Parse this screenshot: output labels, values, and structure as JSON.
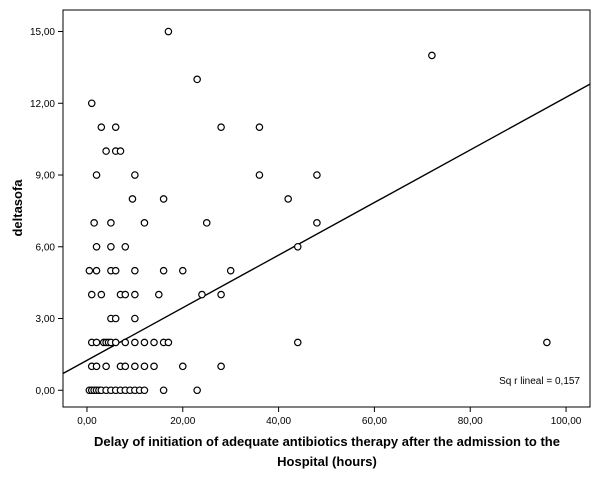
{
  "chart_data": {
    "type": "scatter",
    "xlabel_line1": "Delay of initiation of adequate antibiotics therapy after the admission to the",
    "xlabel_line2": "Hospital (hours)",
    "ylabel": "deltasofa",
    "xlim": [
      -5,
      105
    ],
    "ylim": [
      -0.7,
      15.9
    ],
    "xticks": [
      0,
      20,
      40,
      60,
      80,
      100
    ],
    "xtick_labels": [
      "0,00",
      "20,00",
      "40,00",
      "60,00",
      "80,00",
      "100,00"
    ],
    "yticks": [
      0,
      3,
      6,
      9,
      12,
      15
    ],
    "ytick_labels": [
      "0,00",
      "3,00",
      "6,00",
      "9,00",
      "12,00",
      "15,00"
    ],
    "grid": false,
    "annotation": "Sq r lineal = 0,157",
    "fit_line": {
      "x": [
        -5,
        105
      ],
      "y": [
        0.7,
        12.8
      ]
    },
    "points": [
      {
        "x": 17,
        "y": 15
      },
      {
        "x": 72,
        "y": 14
      },
      {
        "x": 23,
        "y": 13
      },
      {
        "x": 1,
        "y": 12
      },
      {
        "x": 3,
        "y": 11
      },
      {
        "x": 6,
        "y": 11
      },
      {
        "x": 28,
        "y": 11
      },
      {
        "x": 36,
        "y": 11
      },
      {
        "x": 4,
        "y": 10
      },
      {
        "x": 6,
        "y": 10
      },
      {
        "x": 7,
        "y": 10
      },
      {
        "x": 2,
        "y": 9
      },
      {
        "x": 10,
        "y": 9
      },
      {
        "x": 36,
        "y": 9
      },
      {
        "x": 48,
        "y": 9
      },
      {
        "x": 9.5,
        "y": 8
      },
      {
        "x": 16,
        "y": 8
      },
      {
        "x": 42,
        "y": 8
      },
      {
        "x": 1.5,
        "y": 7
      },
      {
        "x": 5,
        "y": 7
      },
      {
        "x": 12,
        "y": 7
      },
      {
        "x": 25,
        "y": 7
      },
      {
        "x": 48,
        "y": 7
      },
      {
        "x": 2,
        "y": 6
      },
      {
        "x": 5,
        "y": 6
      },
      {
        "x": 8,
        "y": 6
      },
      {
        "x": 44,
        "y": 6
      },
      {
        "x": 0.5,
        "y": 5
      },
      {
        "x": 2,
        "y": 5
      },
      {
        "x": 5,
        "y": 5
      },
      {
        "x": 6,
        "y": 5
      },
      {
        "x": 10,
        "y": 5
      },
      {
        "x": 16,
        "y": 5
      },
      {
        "x": 20,
        "y": 5
      },
      {
        "x": 30,
        "y": 5
      },
      {
        "x": 1,
        "y": 4
      },
      {
        "x": 3,
        "y": 4
      },
      {
        "x": 7,
        "y": 4
      },
      {
        "x": 8,
        "y": 4
      },
      {
        "x": 10,
        "y": 4
      },
      {
        "x": 15,
        "y": 4
      },
      {
        "x": 24,
        "y": 4
      },
      {
        "x": 28,
        "y": 4
      },
      {
        "x": 5,
        "y": 3
      },
      {
        "x": 6,
        "y": 3
      },
      {
        "x": 10,
        "y": 3
      },
      {
        "x": 1,
        "y": 2
      },
      {
        "x": 2,
        "y": 2
      },
      {
        "x": 3.5,
        "y": 2
      },
      {
        "x": 4,
        "y": 2
      },
      {
        "x": 4.5,
        "y": 2
      },
      {
        "x": 5,
        "y": 2
      },
      {
        "x": 6,
        "y": 2
      },
      {
        "x": 8,
        "y": 2
      },
      {
        "x": 10,
        "y": 2
      },
      {
        "x": 12,
        "y": 2
      },
      {
        "x": 14,
        "y": 2
      },
      {
        "x": 16,
        "y": 2
      },
      {
        "x": 17,
        "y": 2
      },
      {
        "x": 44,
        "y": 2
      },
      {
        "x": 96,
        "y": 2
      },
      {
        "x": 1,
        "y": 1
      },
      {
        "x": 2,
        "y": 1
      },
      {
        "x": 4,
        "y": 1
      },
      {
        "x": 7,
        "y": 1
      },
      {
        "x": 8,
        "y": 1
      },
      {
        "x": 10,
        "y": 1
      },
      {
        "x": 12,
        "y": 1
      },
      {
        "x": 14,
        "y": 1
      },
      {
        "x": 20,
        "y": 1
      },
      {
        "x": 28,
        "y": 1
      },
      {
        "x": 0.5,
        "y": 0
      },
      {
        "x": 1,
        "y": 0
      },
      {
        "x": 1.5,
        "y": 0
      },
      {
        "x": 2,
        "y": 0
      },
      {
        "x": 2.5,
        "y": 0
      },
      {
        "x": 3,
        "y": 0
      },
      {
        "x": 4,
        "y": 0
      },
      {
        "x": 5,
        "y": 0
      },
      {
        "x": 6,
        "y": 0
      },
      {
        "x": 7,
        "y": 0
      },
      {
        "x": 8,
        "y": 0
      },
      {
        "x": 9,
        "y": 0
      },
      {
        "x": 10,
        "y": 0
      },
      {
        "x": 11,
        "y": 0
      },
      {
        "x": 12,
        "y": 0
      },
      {
        "x": 16,
        "y": 0
      },
      {
        "x": 23,
        "y": 0
      }
    ]
  }
}
